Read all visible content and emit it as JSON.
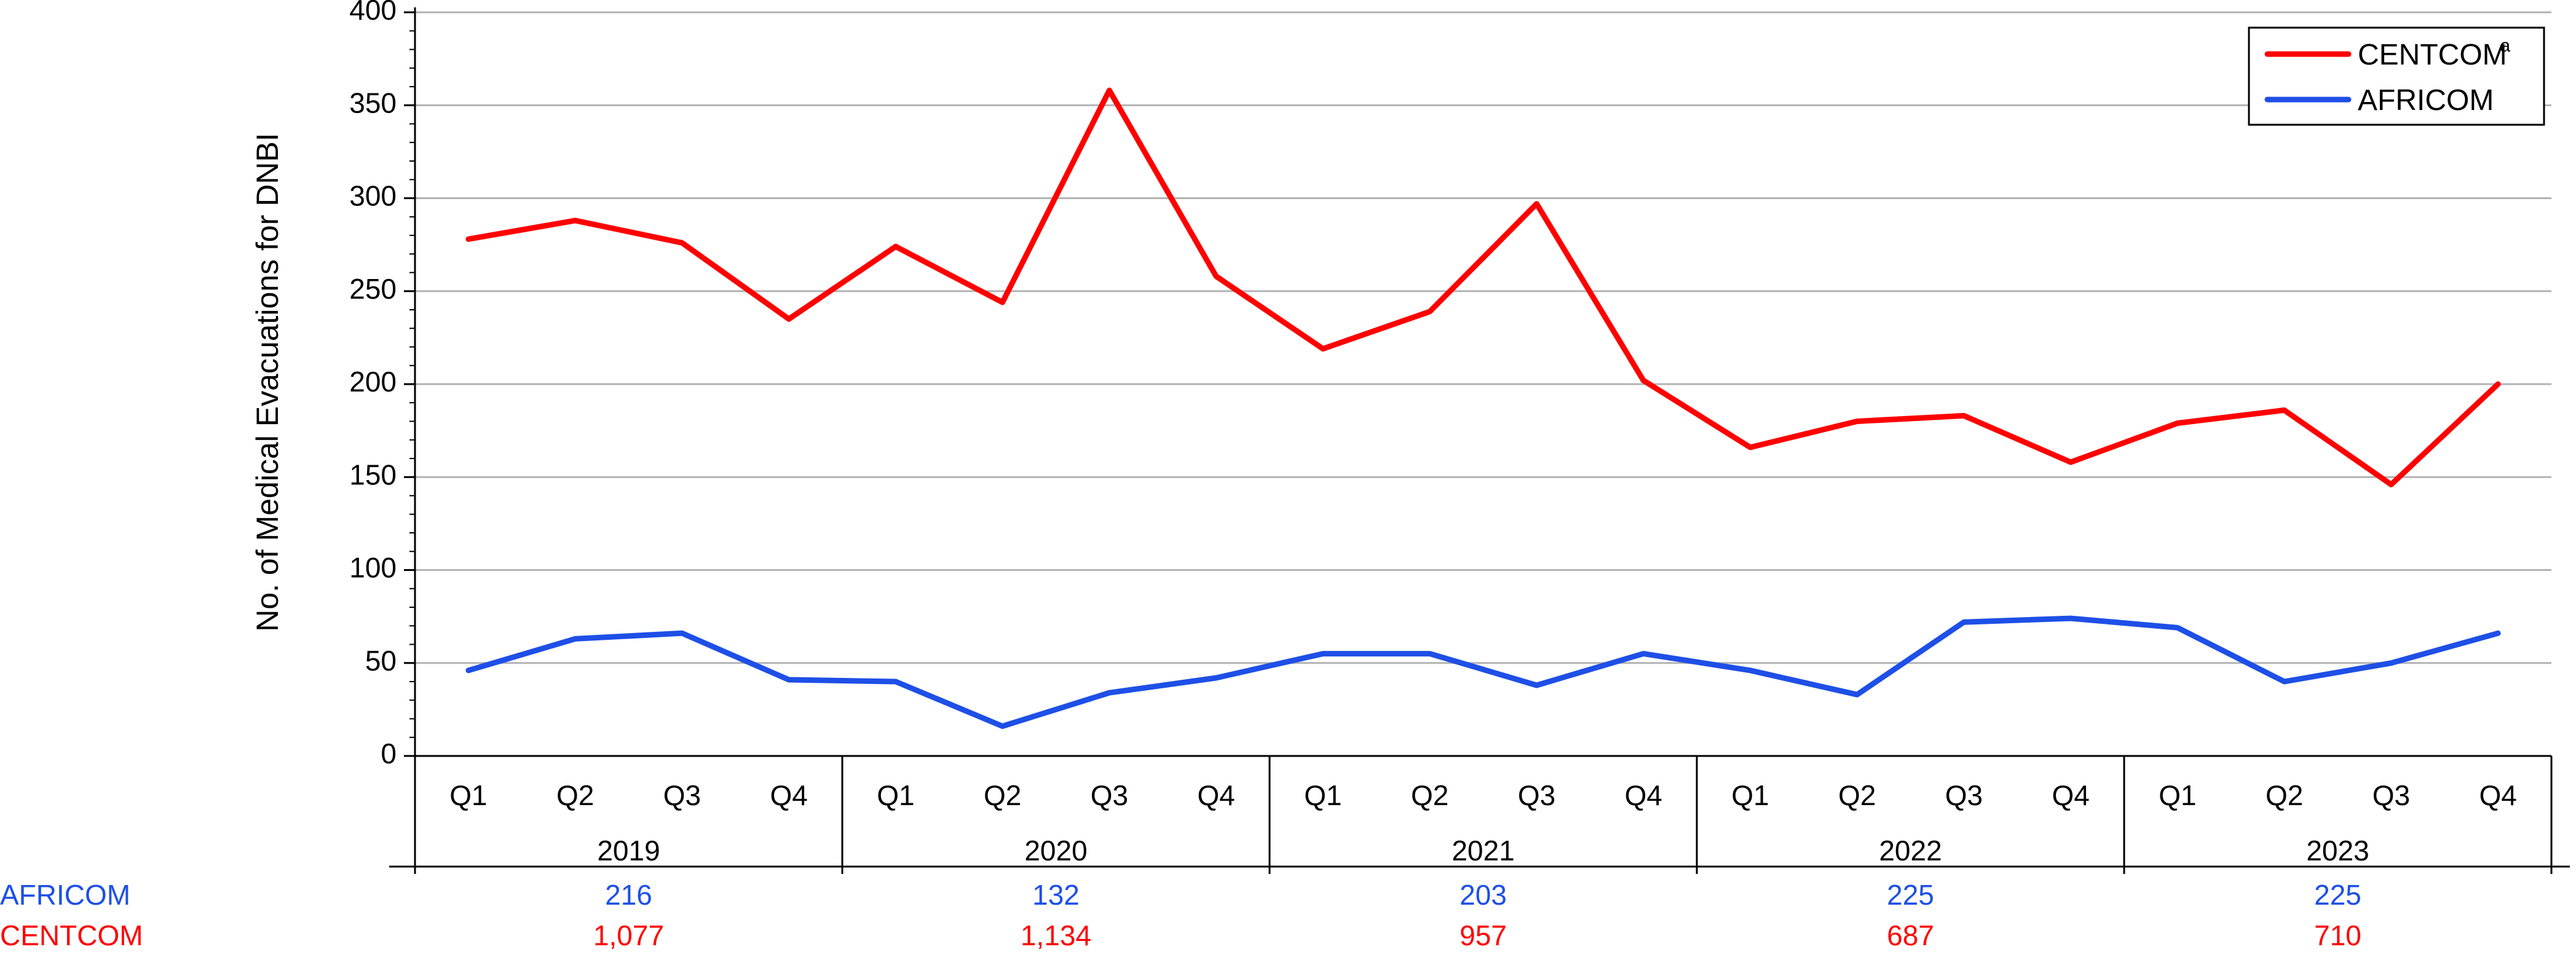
{
  "chart_data": {
    "type": "line",
    "title": "",
    "ylabel": "No. of Medical Evacuations for DNBI",
    "xlabel": "",
    "ylim": [
      0,
      400
    ],
    "yticks": [
      0,
      50,
      100,
      150,
      200,
      250,
      300,
      350,
      400
    ],
    "grid": true,
    "legend_position": "top-right",
    "years": [
      "2019",
      "2020",
      "2021",
      "2022",
      "2023"
    ],
    "quarters": [
      "Q1",
      "Q2",
      "Q3",
      "Q4"
    ],
    "x": [
      "2019 Q1",
      "2019 Q2",
      "2019 Q3",
      "2019 Q4",
      "2020 Q1",
      "2020 Q2",
      "2020 Q3",
      "2020 Q4",
      "2021 Q1",
      "2021 Q2",
      "2021 Q3",
      "2021 Q4",
      "2022 Q1",
      "2022 Q2",
      "2022 Q3",
      "2022 Q4",
      "2023 Q1",
      "2023 Q2",
      "2023 Q3",
      "2023 Q4"
    ],
    "series": [
      {
        "name": "CENTCOM",
        "superscript": "a",
        "color": "#ff0000",
        "values": [
          278,
          288,
          276,
          235,
          274,
          244,
          358,
          258,
          219,
          239,
          297,
          202,
          166,
          180,
          183,
          158,
          179,
          186,
          146,
          200
        ]
      },
      {
        "name": "AFRICOM",
        "color": "#1e4fe6",
        "values": [
          46,
          63,
          66,
          41,
          40,
          16,
          34,
          42,
          55,
          55,
          38,
          55,
          46,
          33,
          72,
          74,
          69,
          40,
          50,
          66
        ]
      }
    ],
    "annual_totals": {
      "AFRICOM": [
        "216",
        "132",
        "203",
        "225",
        "225"
      ],
      "CENTCOM": [
        "1,077",
        "1,134",
        "957",
        "687",
        "710"
      ]
    }
  }
}
